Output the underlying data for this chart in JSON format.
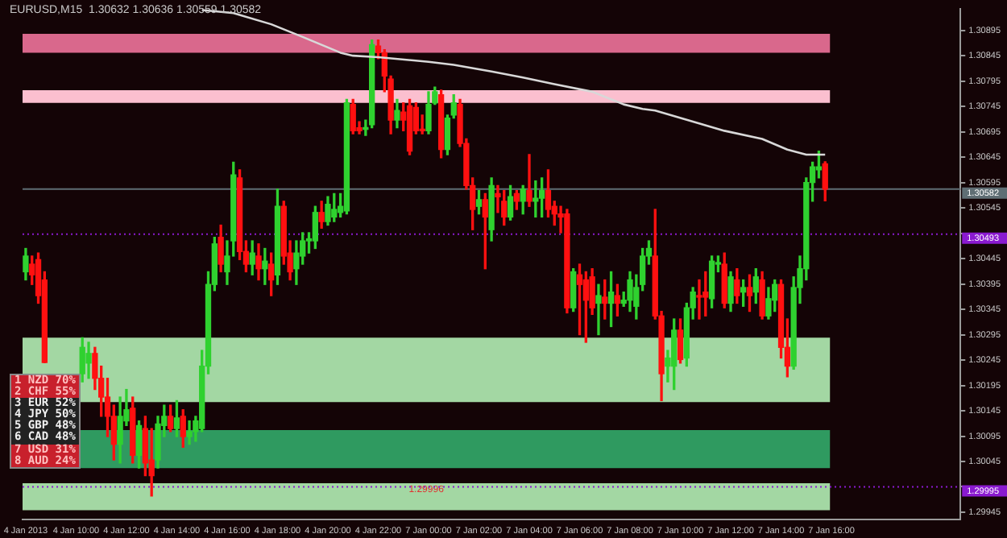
{
  "chart_data": {
    "type": "candlestick",
    "title": "EURUSD,M15  1.30632 1.30636 1.30559 1.30582",
    "categories": [
      "4 Jan 2013",
      null,
      null,
      null,
      null,
      null,
      null,
      null,
      "4 Jan 10:00",
      null,
      null,
      null,
      null,
      null,
      null,
      null,
      "4 Jan 12:00",
      null,
      null,
      null,
      null,
      null,
      null,
      null,
      "4 Jan 14:00",
      null,
      null,
      null,
      null,
      null,
      null,
      null,
      "4 Jan 16:00",
      null,
      null,
      null,
      null,
      null,
      null,
      null,
      "4 Jan 18:00",
      null,
      null,
      null,
      null,
      null,
      null,
      null,
      "4 Jan 20:00",
      null,
      null,
      null,
      null,
      null,
      null,
      null,
      "4 Jan 22:00",
      null,
      null,
      null,
      null,
      null,
      null,
      null,
      "7 Jan 00:00",
      null,
      null,
      null,
      null,
      null,
      null,
      null,
      "7 Jan 02:00",
      null,
      null,
      null,
      null,
      null,
      null,
      null,
      "7 Jan 04:00",
      null,
      null,
      null,
      null,
      null,
      null,
      null,
      "7 Jan 06:00",
      null,
      null,
      null,
      null,
      null,
      null,
      null,
      "7 Jan 08:00",
      null,
      null,
      null,
      null,
      null,
      null,
      null,
      "7 Jan 10:00",
      null,
      null,
      null,
      null,
      null,
      null,
      null,
      "7 Jan 12:00",
      null,
      null,
      null,
      null,
      null,
      null,
      null,
      "7 Jan 14:00",
      null,
      null,
      null,
      null,
      null,
      null,
      null,
      "7 Jan 16:00",
      null,
      null,
      null,
      null,
      null,
      null,
      null,
      null,
      null,
      null,
      null,
      null,
      null,
      null,
      null,
      null,
      null,
      null,
      null,
      null
    ],
    "ohlc": [
      [
        1.30419,
        1.30465,
        1.30403,
        1.3045
      ],
      [
        1.30434,
        1.3045,
        1.30394,
        1.30413
      ],
      [
        1.30443,
        1.30456,
        1.30357,
        1.30372
      ],
      [
        1.30403,
        1.30419,
        1.3024,
        1.3024
      ],
      null,
      null,
      null,
      null,
      null,
      [
        1.30218,
        1.30289,
        1.30202,
        1.3027
      ],
      [
        1.30239,
        1.3028,
        1.30209,
        1.30258
      ],
      [
        1.30258,
        1.3027,
        1.30187,
        1.30209
      ],
      [
        1.30209,
        1.30233,
        1.30134,
        1.30172
      ],
      [
        1.30172,
        1.30209,
        1.30094,
        1.30134
      ],
      [
        1.30134,
        1.30156,
        1.30048,
        1.30079
      ],
      [
        1.30079,
        1.30172,
        1.30042,
        1.30134
      ],
      [
        1.30125,
        1.30187,
        1.30116,
        1.30147
      ],
      [
        1.3015,
        1.30172,
        1.30042,
        1.30057
      ],
      [
        1.30057,
        1.30125,
        1.30032,
        1.30116
      ],
      [
        1.3011,
        1.30134,
        1.30017,
        1.30042
      ],
      [
        1.30048,
        1.3011,
        1.29977,
        1.30017
      ],
      [
        1.30048,
        1.30134,
        1.30032,
        1.30119
      ],
      [
        1.30116,
        1.30156,
        1.30094,
        1.30134
      ],
      [
        1.30134,
        1.30156,
        1.30104,
        1.3011
      ],
      [
        1.3011,
        1.30165,
        1.30094,
        1.30131
      ],
      [
        1.30134,
        1.30147,
        1.30073,
        1.30094
      ],
      [
        1.30094,
        1.30125,
        1.30079,
        1.30104
      ],
      [
        1.30104,
        1.30134,
        1.30085,
        1.30125
      ],
      [
        1.3011,
        1.30264,
        1.30104,
        1.30233
      ],
      [
        1.30233,
        1.30419,
        1.30218,
        1.30394
      ],
      [
        1.30394,
        1.30487,
        1.30382,
        1.30474
      ],
      [
        1.30487,
        1.30511,
        1.30419,
        1.30434
      ],
      [
        1.30419,
        1.3048,
        1.30394,
        1.3045
      ],
      [
        1.3048,
        1.30635,
        1.3045,
        1.3061
      ],
      [
        1.30604,
        1.3062,
        1.30443,
        1.30459
      ],
      [
        1.30459,
        1.3048,
        1.30419,
        1.30434
      ],
      [
        1.30434,
        1.3048,
        1.30413,
        1.30456
      ],
      [
        1.3045,
        1.30474,
        1.30403,
        1.30425
      ],
      [
        1.30425,
        1.30465,
        1.30394,
        1.3044
      ],
      [
        1.30434,
        1.30456,
        1.30372,
        1.30403
      ],
      [
        1.30413,
        1.30582,
        1.30394,
        1.30548
      ],
      [
        1.30548,
        1.30558,
        1.30434,
        1.3045
      ],
      [
        1.30456,
        1.3048,
        1.30403,
        1.30419
      ],
      [
        1.30425,
        1.3048,
        1.30394,
        1.30456
      ],
      [
        1.3045,
        1.30496,
        1.30434,
        1.3048
      ],
      [
        1.3048,
        1.30496,
        1.30456,
        1.30484
      ],
      [
        1.3048,
        1.30548,
        1.30465,
        1.30536
      ],
      [
        1.30536,
        1.30558,
        1.30505,
        1.30518
      ],
      [
        1.30518,
        1.30567,
        1.30511,
        1.30552
      ],
      [
        1.30527,
        1.30573,
        1.30518,
        1.30542
      ],
      [
        1.30536,
        1.30573,
        1.30527,
        1.30548
      ],
      [
        1.30539,
        1.30759,
        1.30533,
        1.30752
      ],
      [
        1.30749,
        1.30759,
        1.30691,
        1.30697
      ],
      [
        1.30703,
        1.30715,
        1.30691,
        1.30697
      ],
      [
        1.307,
        1.30718,
        1.30688,
        1.30703
      ],
      [
        1.30709,
        1.30876,
        1.30703,
        1.30867
      ],
      [
        1.30864,
        1.30876,
        1.30839,
        1.30851
      ],
      [
        1.30851,
        1.30857,
        1.30774,
        1.30805
      ],
      [
        1.30799,
        1.30805,
        1.30691,
        1.30718
      ],
      [
        1.30718,
        1.30759,
        1.30703,
        1.30737
      ],
      [
        1.30734,
        1.30752,
        1.30697,
        1.30718
      ],
      [
        1.30746,
        1.30759,
        1.3065,
        1.30657
      ],
      [
        1.30743,
        1.30752,
        1.30691,
        1.30697
      ],
      [
        1.307,
        1.30728,
        1.30691,
        1.30697
      ],
      [
        1.30697,
        1.30774,
        1.30691,
        1.30749
      ],
      [
        1.30752,
        1.30783,
        1.30749,
        1.30774
      ],
      [
        1.30768,
        1.30777,
        1.30644,
        1.3066
      ],
      [
        1.3066,
        1.30728,
        1.3065,
        1.30722
      ],
      [
        1.30728,
        1.30768,
        1.30722,
        1.30752
      ],
      [
        1.30749,
        1.30759,
        1.30666,
        1.30672
      ],
      [
        1.30672,
        1.30681,
        1.30582,
        1.30589
      ],
      [
        1.30589,
        1.30604,
        1.30502,
        1.30542
      ],
      [
        1.30548,
        1.30579,
        1.30533,
        1.30561
      ],
      [
        1.30561,
        1.30573,
        1.30425,
        1.30527
      ],
      [
        1.30502,
        1.30604,
        1.3048,
        1.30589
      ],
      [
        1.30573,
        1.30589,
        1.30536,
        1.30567
      ],
      [
        1.30558,
        1.30579,
        1.30511,
        1.30527
      ],
      [
        1.30527,
        1.30589,
        1.30521,
        1.30567
      ],
      [
        1.30573,
        1.30579,
        1.30542,
        1.30558
      ],
      [
        1.30558,
        1.30589,
        1.30533,
        1.30582
      ],
      [
        1.30579,
        1.3065,
        1.30548,
        1.30558
      ],
      [
        1.30558,
        1.30598,
        1.30527,
        1.30564
      ],
      [
        1.30564,
        1.30604,
        1.30527,
        1.30579
      ],
      [
        1.30579,
        1.3062,
        1.30527,
        1.30542
      ],
      [
        1.30548,
        1.30558,
        1.30511,
        1.30533
      ],
      [
        1.30533,
        1.30548,
        1.30496,
        1.30527
      ],
      [
        1.30533,
        1.30542,
        1.30338,
        1.30348
      ],
      [
        1.30348,
        1.30425,
        1.30341,
        1.30419
      ],
      [
        1.30413,
        1.30434,
        1.30295,
        1.30394
      ],
      [
        1.30403,
        1.30419,
        1.3028,
        1.30363
      ],
      [
        1.30409,
        1.30425,
        1.30335,
        1.30348
      ],
      [
        1.30357,
        1.30394,
        1.30295,
        1.30372
      ],
      [
        1.30369,
        1.30403,
        1.30326,
        1.30357
      ],
      [
        1.30357,
        1.30419,
        1.30311,
        1.30379
      ],
      [
        1.30372,
        1.30394,
        1.30332,
        1.30357
      ],
      [
        1.30357,
        1.30379,
        1.30351,
        1.30363
      ],
      [
        1.30363,
        1.30419,
        1.30341,
        1.30403
      ],
      [
        1.30351,
        1.30413,
        1.30326,
        1.30388
      ],
      [
        1.30394,
        1.30465,
        1.30382,
        1.3045
      ],
      [
        1.3045,
        1.3048,
        1.30434,
        1.30465
      ],
      [
        1.3045,
        1.30542,
        1.30326,
        1.30332
      ],
      [
        1.30332,
        1.30341,
        1.30165,
        1.30218
      ],
      [
        1.30233,
        1.30264,
        1.30202,
        1.30249
      ],
      [
        1.30233,
        1.30326,
        1.30187,
        1.30304
      ],
      [
        1.30304,
        1.30326,
        1.30239,
        1.30246
      ],
      [
        1.30249,
        1.30357,
        1.30233,
        1.30348
      ],
      [
        1.30348,
        1.30388,
        1.30326,
        1.30379
      ],
      [
        1.30372,
        1.30403,
        1.30326,
        1.30369
      ],
      [
        1.30379,
        1.30419,
        1.30332,
        1.30369
      ],
      [
        1.30366,
        1.3045,
        1.30348,
        1.3044
      ],
      [
        1.30434,
        1.3045,
        1.30419,
        1.30437
      ],
      [
        1.30434,
        1.30456,
        1.30348,
        1.30357
      ],
      [
        1.30357,
        1.30419,
        1.30341,
        1.30409
      ],
      [
        1.30403,
        1.30425,
        1.30357,
        1.30372
      ],
      [
        1.30379,
        1.30403,
        1.30351,
        1.30388
      ],
      [
        1.30388,
        1.30413,
        1.30341,
        1.30372
      ],
      [
        1.30379,
        1.30425,
        1.30357,
        1.30409
      ],
      [
        1.30403,
        1.30419,
        1.30326,
        1.30332
      ],
      [
        1.30332,
        1.30388,
        1.30326,
        1.30366
      ],
      [
        1.30363,
        1.30403,
        1.30341,
        1.30394
      ],
      [
        1.30394,
        1.30403,
        1.30249,
        1.3027
      ],
      [
        1.3027,
        1.30326,
        1.30212,
        1.30233
      ],
      [
        1.30233,
        1.30409,
        1.30227,
        1.30388
      ],
      [
        1.30388,
        1.3045,
        1.30357,
        1.30425
      ],
      [
        1.30425,
        1.30604,
        1.30403,
        1.30595
      ],
      [
        1.30595,
        1.30635,
        1.30558,
        1.30626
      ],
      [
        1.3062,
        1.30657,
        1.30604,
        1.30626
      ],
      [
        1.30632,
        1.30636,
        1.30559,
        1.30582
      ],
      null,
      null,
      null,
      null,
      null,
      null,
      null,
      null,
      null,
      null,
      null,
      null,
      null,
      null,
      null,
      null,
      null,
      null,
      null,
      null,
      null
    ],
    "colors": [
      "#2fd12f",
      "#ff1010",
      "#ff1010",
      "#ff1010",
      null,
      null,
      null,
      null,
      null,
      "#2fd12f",
      "#2fd12f",
      "#ff1010",
      "#ff1010",
      "#ff1010",
      "#ff1010",
      "#2fd12f",
      "#2fd12f",
      "#ff1010",
      "#2fd12f",
      "#ff1010",
      "#ff1010",
      "#2fd12f",
      "#2fd12f",
      "#ff1010",
      "#2fd12f",
      "#ff1010",
      "#2fd12f",
      "#2fd12f",
      "#2fd12f",
      "#2fd12f",
      "#2fd12f",
      "#ff1010",
      "#2fd12f",
      "#2fd12f",
      "#ff1010",
      "#ff1010",
      "#2fd12f",
      "#ff1010",
      "#2fd12f",
      "#ff1010",
      "#2fd12f",
      "#ff1010",
      "#ff1010",
      "#2fd12f",
      "#2fd12f",
      "#2fd12f",
      "#2fd12f",
      "#ff1010",
      "#2fd12f",
      "#2fd12f",
      "#2fd12f",
      "#2fd12f",
      "#ff1010",
      "#ff1010",
      "#2fd12f",
      "#2fd12f",
      "#ff1010",
      "#ff1010",
      "#ff1010",
      "#2fd12f",
      "#ff1010",
      "#ff1010",
      "#ff1010",
      "#ff1010",
      "#2fd12f",
      "#2fd12f",
      "#ff1010",
      "#2fd12f",
      "#2fd12f",
      "#ff1010",
      "#ff1010",
      "#ff1010",
      "#2fd12f",
      "#ff1010",
      "#2fd12f",
      "#ff1010",
      "#ff1010",
      "#2fd12f",
      "#ff1010",
      "#2fd12f",
      "#ff1010",
      "#2fd12f",
      "#2fd12f",
      "#ff1010",
      "#ff1010",
      "#ff1010",
      "#ff1010",
      "#2fd12f",
      "#ff1010",
      "#ff1010",
      "#ff1010",
      "#2fd12f",
      "#ff1010",
      "#2fd12f",
      "#ff1010",
      "#2fd12f",
      "#2fd12f",
      "#2fd12f",
      "#2fd12f",
      "#2fd12f",
      "#ff1010",
      "#ff1010",
      "#2fd12f",
      "#2fd12f",
      "#ff1010",
      "#2fd12f",
      "#2fd12f",
      "#ff1010",
      "#ff1010",
      "#2fd12f",
      "#2fd12f",
      "#ff1010",
      "#2fd12f",
      "#ff1010",
      "#2fd12f",
      "#ff1010",
      "#2fd12f",
      "#ff1010",
      "#2fd12f",
      "#2fd12f",
      "#ff1010",
      "#ff1010",
      "#2fd12f",
      "#2fd12f",
      "#2fd12f",
      "#2fd12f",
      "#2fd12f",
      "#ff1010",
      null,
      null,
      null,
      null,
      null,
      null,
      null,
      null,
      null,
      null,
      null,
      null,
      null,
      null,
      null,
      null,
      null,
      null,
      null,
      null,
      null
    ],
    "series": [
      {
        "type": "line",
        "color": "#d8d8d8",
        "values": [
          null,
          null,
          null,
          null,
          null,
          null,
          null,
          null,
          null,
          null,
          null,
          null,
          null,
          null,
          null,
          null,
          null,
          null,
          null,
          null,
          null,
          null,
          null,
          null,
          null,
          null,
          null,
          null,
          1.30935,
          null,
          null,
          null,
          null,
          1.30929,
          null,
          null,
          null,
          null,
          null,
          1.30907,
          null,
          null,
          null,
          null,
          1.30882,
          null,
          null,
          null,
          null,
          null,
          1.30851,
          null,
          1.30845,
          null,
          null,
          null,
          1.30842,
          null,
          null,
          null,
          null,
          null,
          null,
          null,
          1.30833,
          null,
          null,
          null,
          1.30827,
          null,
          null,
          null,
          null,
          null,
          1.30814,
          null,
          null,
          null,
          null,
          1.30802,
          null,
          null,
          null,
          null,
          1.30789,
          null,
          null,
          null,
          null,
          null,
          1.30774,
          null,
          null,
          null,
          null,
          1.30749,
          null,
          null,
          1.3074,
          null,
          1.30737,
          null,
          null,
          null,
          null,
          null,
          1.30715,
          null,
          null,
          null,
          null,
          1.30697,
          null,
          null,
          null,
          null,
          null,
          1.30681,
          null,
          null,
          null,
          1.3066,
          null,
          null,
          1.3065,
          null,
          null,
          1.3065,
          null,
          null,
          null,
          null,
          null,
          null,
          null,
          null,
          null,
          null,
          null,
          null,
          null,
          null,
          null,
          null,
          null,
          null,
          null,
          null,
          null
        ]
      }
    ],
    "ylim": [
      1.29931,
      1.30938
    ],
    "yticks": [
      1.29945,
      {
        "value": 1.29995,
        "label": null
      },
      1.30045,
      1.30095,
      1.30145,
      1.30195,
      1.30245,
      1.30295,
      1.30345,
      1.30395,
      1.30445,
      {
        "value": 1.30495,
        "label": null
      },
      1.30545,
      1.30595,
      1.30645,
      1.30695,
      1.30745,
      1.30795,
      1.30845,
      1.30895
    ],
    "ref_lines": [
      {
        "axis": "y",
        "value": 1.30582,
        "label": "1.30582",
        "color": "#5f6e74",
        "line_style": "solid"
      },
      {
        "axis": "y",
        "value": 1.30493,
        "label": "1.30493",
        "color": "#8a1ad0",
        "line_style": "dotted"
      },
      {
        "axis": "y",
        "value": 1.29995,
        "label": "1.29995",
        "color": "#8a1ad0",
        "line_style": "dotted"
      }
    ],
    "bands": [
      {
        "axis": "y",
        "from": 1.30851,
        "to": 1.30888,
        "color": "#d9688c"
      },
      {
        "axis": "y",
        "from": 1.30752,
        "to": 1.30777,
        "color": "#fbbfcf"
      },
      {
        "axis": "y",
        "from": 1.30162,
        "to": 1.30289,
        "color": "#a3d7a3"
      },
      {
        "axis": "y",
        "from": 1.30032,
        "to": 1.30107,
        "color": "#2f9a60"
      },
      {
        "axis": "y",
        "from": 1.29949,
        "to": 1.30002,
        "color": "#a3d7a3",
        "label": "1.29996"
      }
    ],
    "annotations": [
      "1 NZD 70%",
      "2 CHF 55%",
      "3 EUR 52%",
      "4 JPY 50%",
      "5 GBP 48%",
      "6 CAD 48%",
      "7 USD 31%",
      "8 AUD 24%"
    ],
    "grid": false,
    "legend": false
  }
}
